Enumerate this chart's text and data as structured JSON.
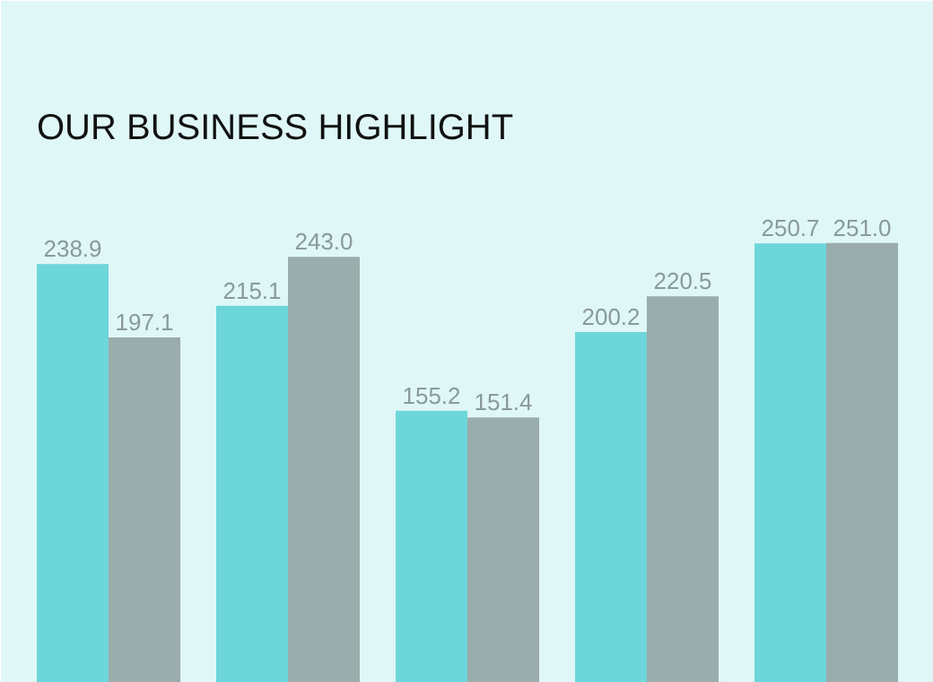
{
  "chart_data": {
    "type": "bar",
    "title": "OUR BUSINESS HIGHLIGHT",
    "categories": [
      null,
      null,
      null,
      null,
      null
    ],
    "series": [
      {
        "color": "#6dd6da",
        "values": [
          238.9,
          215.1,
          155.2,
          200.2,
          250.7
        ],
        "value_labels": [
          "238.9",
          "215.1",
          "155.2",
          "200.2",
          "250.7"
        ]
      },
      {
        "color": "#9aacab",
        "values": [
          197.1,
          243.0,
          151.4,
          220.5,
          251.0
        ],
        "value_labels": [
          "197.1",
          "243.0",
          "151.4",
          "220.5",
          "251.0"
        ]
      }
    ],
    "grid": false
  }
}
